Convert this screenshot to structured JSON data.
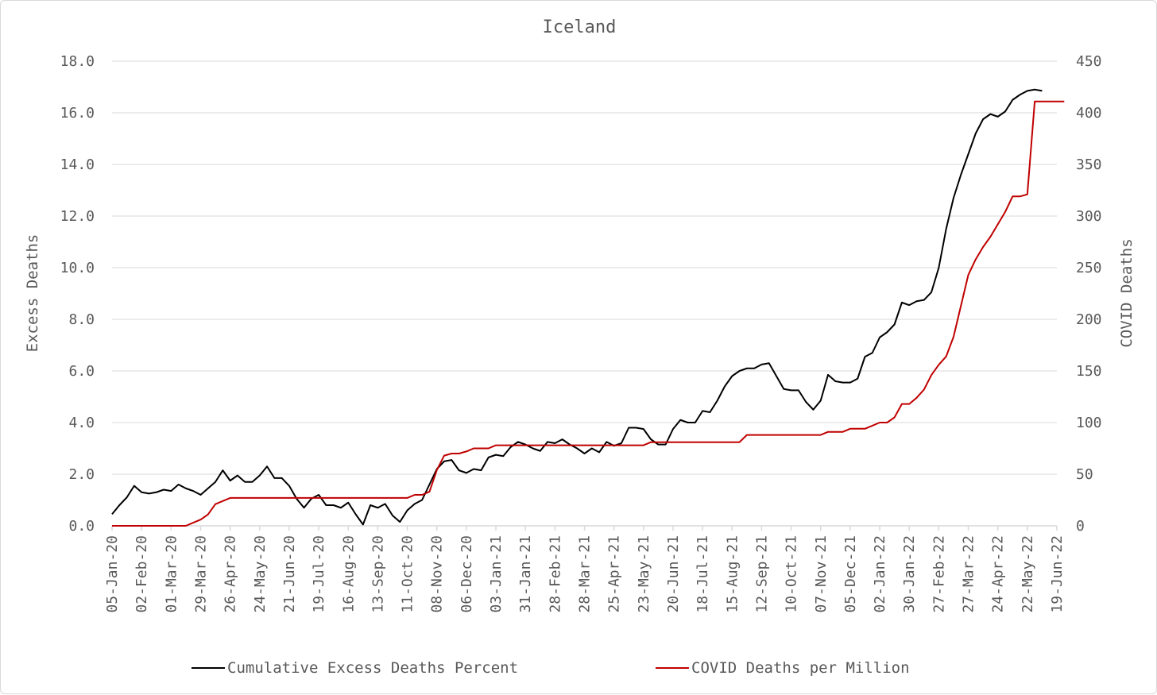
{
  "chart_data": {
    "type": "line",
    "title": "Iceland",
    "ylabel": "Excess Deaths",
    "y2label": "COVID Deaths",
    "ylim": [
      0,
      18
    ],
    "y2lim": [
      0,
      450
    ],
    "yticks": [
      "0.0",
      "2.0",
      "4.0",
      "6.0",
      "8.0",
      "10.0",
      "12.0",
      "14.0",
      "16.0",
      "18.0"
    ],
    "y2ticks": [
      "0",
      "50",
      "100",
      "150",
      "200",
      "250",
      "300",
      "350",
      "400",
      "450"
    ],
    "xticks": [
      "05-Jan-20",
      "02-Feb-20",
      "01-Mar-20",
      "29-Mar-20",
      "26-Apr-20",
      "24-May-20",
      "21-Jun-20",
      "19-Jul-20",
      "16-Aug-20",
      "13-Sep-20",
      "11-Oct-20",
      "08-Nov-20",
      "06-Dec-20",
      "03-Jan-21",
      "31-Jan-21",
      "28-Feb-21",
      "28-Mar-21",
      "25-Apr-21",
      "23-May-21",
      "20-Jun-21",
      "18-Jul-21",
      "15-Aug-21",
      "12-Sep-21",
      "10-Oct-21",
      "07-Nov-21",
      "05-Dec-21",
      "02-Jan-22",
      "30-Jan-22",
      "27-Feb-22",
      "27-Mar-22",
      "24-Apr-22",
      "22-May-22",
      "19-Jun-22"
    ],
    "grid": true,
    "legend": "bottom",
    "colors": {
      "excess": "#000000",
      "covid": "#c00000",
      "grid": "#d9d9d9",
      "text": "#595959"
    },
    "series": [
      {
        "name": "Cumulative Excess Deaths Percent",
        "axis": "left",
        "color": "#000000",
        "x_start": "05-Jan-20",
        "step": "week",
        "values": [
          0.45,
          0.8,
          1.1,
          1.55,
          1.3,
          1.25,
          1.3,
          1.4,
          1.35,
          1.6,
          1.45,
          1.35,
          1.2,
          1.45,
          1.7,
          2.15,
          1.75,
          1.95,
          1.7,
          1.7,
          1.95,
          2.3,
          1.85,
          1.85,
          1.55,
          1.05,
          0.7,
          1.05,
          1.2,
          0.8,
          0.8,
          0.7,
          0.9,
          0.45,
          0.05,
          0.8,
          0.7,
          0.85,
          0.4,
          0.15,
          0.6,
          0.85,
          1.0,
          1.6,
          2.2,
          2.5,
          2.55,
          2.15,
          2.05,
          2.2,
          2.15,
          2.65,
          2.75,
          2.7,
          3.05,
          3.25,
          3.15,
          3.0,
          2.9,
          3.25,
          3.2,
          3.35,
          3.15,
          3.0,
          2.8,
          3.0,
          2.85,
          3.25,
          3.1,
          3.2,
          3.8,
          3.8,
          3.75,
          3.35,
          3.15,
          3.15,
          3.75,
          4.1,
          4.0,
          4.0,
          4.45,
          4.4,
          4.85,
          5.4,
          5.8,
          6.0,
          6.1,
          6.1,
          6.25,
          6.3,
          5.8,
          5.3,
          5.25,
          5.25,
          4.8,
          4.5,
          4.85,
          5.85,
          5.6,
          5.55,
          5.55,
          5.7,
          6.55,
          6.7,
          7.3,
          7.5,
          7.8,
          8.65,
          8.55,
          8.7,
          8.75,
          9.05,
          10.0,
          11.5,
          12.7,
          13.6,
          14.4,
          15.2,
          15.75,
          15.95,
          15.85,
          16.05,
          16.5,
          16.7,
          16.85,
          16.9,
          16.85
        ]
      },
      {
        "name": "COVID Deaths per Million",
        "axis": "right",
        "color": "#c00000",
        "x_start": "05-Jan-20",
        "step": "week",
        "values": [
          0,
          0,
          0,
          0,
          0,
          0,
          0,
          0,
          0,
          0,
          0,
          3,
          6,
          11,
          21,
          24,
          27,
          27,
          27,
          27,
          27,
          27,
          27,
          27,
          27,
          27,
          27,
          27,
          27,
          27,
          27,
          27,
          27,
          27,
          27,
          27,
          27,
          27,
          27,
          27,
          27,
          30,
          30,
          33,
          54,
          68,
          70,
          70,
          72,
          75,
          75,
          75,
          78,
          78,
          78,
          78,
          78,
          78,
          78,
          78,
          78,
          78,
          78,
          78,
          78,
          78,
          78,
          78,
          78,
          78,
          78,
          78,
          78,
          81,
          81,
          81,
          81,
          81,
          81,
          81,
          81,
          81,
          81,
          81,
          81,
          81,
          88,
          88,
          88,
          88,
          88,
          88,
          88,
          88,
          88,
          88,
          88,
          91,
          91,
          91,
          94,
          94,
          94,
          97,
          100,
          100,
          105,
          118,
          118,
          124,
          132,
          146,
          156,
          164,
          183,
          213,
          243,
          258,
          270,
          280,
          292,
          304,
          319,
          319,
          321,
          411,
          411,
          411,
          411,
          411
        ]
      }
    ]
  }
}
